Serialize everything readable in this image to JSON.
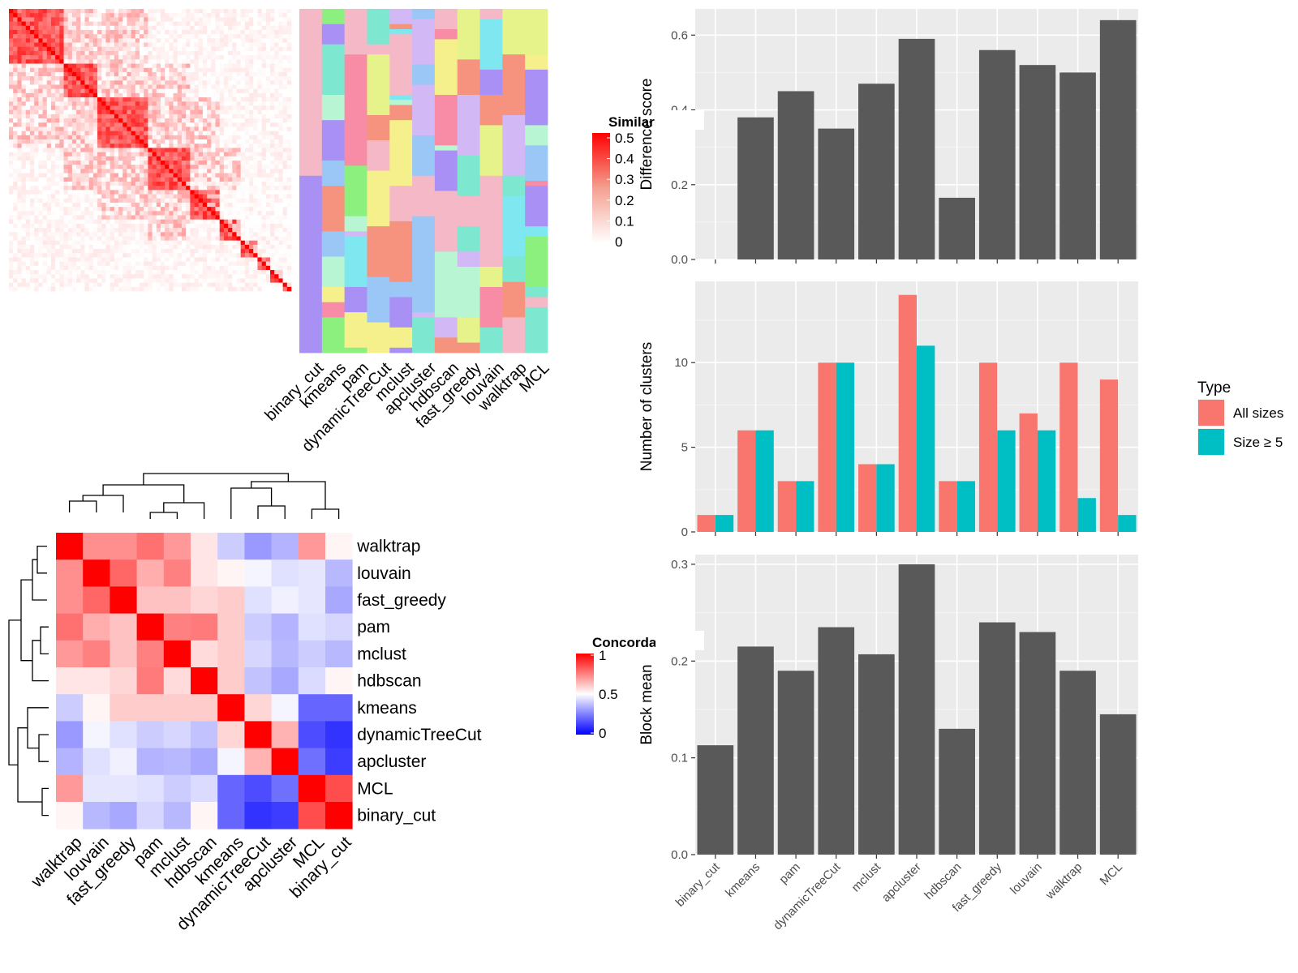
{
  "methods_sim": [
    "binary_cut",
    "kmeans",
    "pam",
    "dynamicTreeCut",
    "mclust",
    "apcluster",
    "hdbscan",
    "fast_greedy",
    "louvain",
    "walktrap",
    "MCL"
  ],
  "similarity_legend": {
    "title": "Similarity",
    "ticks": [
      "0.5",
      "0.4",
      "0.3",
      "0.2",
      "0.1",
      "0"
    ]
  },
  "concordance_legend": {
    "title": "Concordance",
    "ticks": [
      "1",
      "0.5",
      "0"
    ]
  },
  "type_legend": {
    "title": "Type",
    "entries": [
      "All sizes",
      "Size ≥ 5"
    ],
    "colors": [
      "#F8766D",
      "#00BFC4"
    ]
  },
  "chart_data": [
    {
      "type": "heatmap",
      "title": "",
      "description_free": true,
      "colorbar": {
        "title": "Similarity",
        "range": [
          0,
          0.5
        ]
      },
      "block_sizes": [
        13,
        8,
        12,
        10,
        7,
        5,
        4,
        3,
        3,
        2
      ]
    },
    {
      "type": "heatmap",
      "title": "",
      "columns": [
        "binary_cut",
        "kmeans",
        "pam",
        "dynamicTreeCut",
        "mclust",
        "apcluster",
        "hdbscan",
        "fast_greedy",
        "louvain",
        "walktrap",
        "MCL"
      ]
    },
    {
      "type": "heatmap",
      "title": "",
      "row_labels": [
        "walktrap",
        "louvain",
        "fast_greedy",
        "pam",
        "mclust",
        "hdbscan",
        "kmeans",
        "dynamicTreeCut",
        "apcluster",
        "MCL",
        "binary_cut"
      ],
      "col_labels": [
        "walktrap",
        "louvain",
        "fast_greedy",
        "pam",
        "mclust",
        "hdbscan",
        "kmeans",
        "dynamicTreeCut",
        "apcluster",
        "MCL",
        "binary_cut"
      ],
      "colorbar": {
        "title": "Concordance",
        "range": [
          0,
          1
        ]
      },
      "values": [
        [
          1.0,
          0.72,
          0.72,
          0.78,
          0.7,
          0.55,
          0.4,
          0.3,
          0.35,
          0.7,
          0.52
        ],
        [
          0.72,
          1.0,
          0.8,
          0.66,
          0.75,
          0.55,
          0.52,
          0.48,
          0.44,
          0.45,
          0.36
        ],
        [
          0.72,
          0.8,
          1.0,
          0.62,
          0.62,
          0.58,
          0.6,
          0.44,
          0.47,
          0.45,
          0.33
        ],
        [
          0.78,
          0.66,
          0.62,
          1.0,
          0.75,
          0.76,
          0.6,
          0.4,
          0.35,
          0.44,
          0.42
        ],
        [
          0.7,
          0.75,
          0.62,
          0.75,
          1.0,
          0.57,
          0.6,
          0.42,
          0.36,
          0.4,
          0.36
        ],
        [
          0.55,
          0.55,
          0.58,
          0.76,
          0.57,
          1.0,
          0.6,
          0.38,
          0.33,
          0.43,
          0.52
        ],
        [
          0.4,
          0.52,
          0.6,
          0.6,
          0.6,
          0.6,
          1.0,
          0.58,
          0.48,
          0.2,
          0.2
        ],
        [
          0.3,
          0.48,
          0.44,
          0.4,
          0.42,
          0.38,
          0.58,
          1.0,
          0.65,
          0.15,
          0.1
        ],
        [
          0.35,
          0.44,
          0.47,
          0.35,
          0.36,
          0.33,
          0.48,
          0.65,
          1.0,
          0.22,
          0.12
        ],
        [
          0.7,
          0.45,
          0.45,
          0.44,
          0.4,
          0.43,
          0.2,
          0.15,
          0.22,
          1.0,
          0.85
        ],
        [
          0.52,
          0.36,
          0.33,
          0.42,
          0.36,
          0.52,
          0.2,
          0.1,
          0.12,
          0.85,
          1.0
        ]
      ]
    },
    {
      "type": "bar",
      "title": "",
      "xlabel": "",
      "ylabel": "Difference score",
      "ylim": [
        0,
        0.67
      ],
      "yticks": [
        0.0,
        0.2,
        0.4,
        0.6
      ],
      "categories": [
        "binary_cut",
        "kmeans",
        "pam",
        "dynamicTreeCut",
        "mclust",
        "apcluster",
        "hdbscan",
        "fast_greedy",
        "louvain",
        "walktrap",
        "MCL"
      ],
      "values": [
        0.0,
        0.38,
        0.45,
        0.35,
        0.47,
        0.59,
        0.165,
        0.56,
        0.52,
        0.5,
        0.64
      ]
    },
    {
      "type": "bar",
      "title": "",
      "xlabel": "",
      "ylabel": "Number of clusters",
      "ylim": [
        0,
        14.8
      ],
      "yticks": [
        0,
        5,
        10
      ],
      "categories": [
        "binary_cut",
        "kmeans",
        "pam",
        "dynamicTreeCut",
        "mclust",
        "apcluster",
        "hdbscan",
        "fast_greedy",
        "louvain",
        "walktrap",
        "MCL"
      ],
      "series": [
        {
          "name": "All sizes",
          "values": [
            1,
            6,
            3,
            10,
            4,
            14,
            3,
            10,
            7,
            10,
            9
          ]
        },
        {
          "name": "Size ≥ 5",
          "values": [
            1,
            6,
            3,
            10,
            4,
            11,
            3,
            6,
            6,
            2,
            1
          ]
        }
      ],
      "legend": "right"
    },
    {
      "type": "bar",
      "title": "",
      "xlabel": "",
      "ylabel": "Block mean",
      "ylim": [
        0,
        0.31
      ],
      "yticks": [
        0.0,
        0.1,
        0.2,
        0.3
      ],
      "categories": [
        "binary_cut",
        "kmeans",
        "pam",
        "dynamicTreeCut",
        "mclust",
        "apcluster",
        "hdbscan",
        "fast_greedy",
        "louvain",
        "walktrap",
        "MCL"
      ],
      "values": [
        0.113,
        0.215,
        0.19,
        0.235,
        0.207,
        0.3,
        0.13,
        0.24,
        0.23,
        0.19,
        0.145
      ]
    }
  ]
}
